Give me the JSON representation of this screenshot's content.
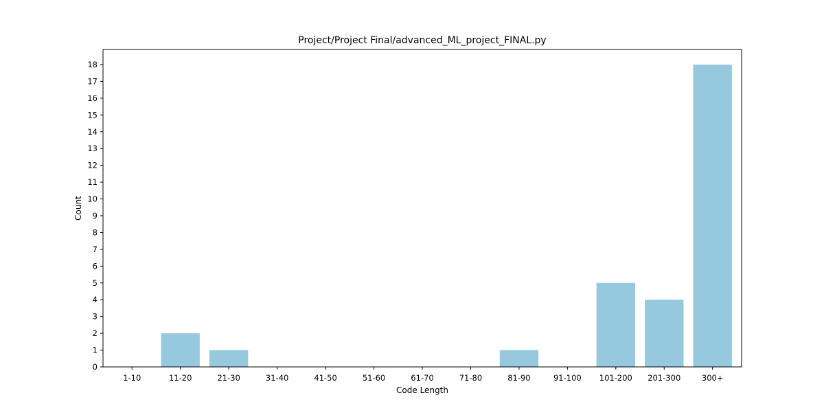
{
  "chart_data": {
    "type": "bar",
    "title": "Project/Project Final/advanced_ML_project_FINAL.py",
    "xlabel": "Code Length",
    "ylabel": "Count",
    "categories": [
      "1-10",
      "11-20",
      "21-30",
      "31-40",
      "41-50",
      "51-60",
      "61-70",
      "71-80",
      "81-90",
      "91-100",
      "101-200",
      "201-300",
      "300+"
    ],
    "values": [
      0,
      2,
      1,
      0,
      0,
      0,
      0,
      0,
      1,
      0,
      5,
      4,
      18
    ],
    "ylim": [
      0,
      18.9
    ],
    "yticks": [
      0,
      1,
      2,
      3,
      4,
      5,
      6,
      7,
      8,
      9,
      10,
      11,
      12,
      13,
      14,
      15,
      16,
      17,
      18
    ],
    "grid": false,
    "bar_color": "#96c9de"
  }
}
